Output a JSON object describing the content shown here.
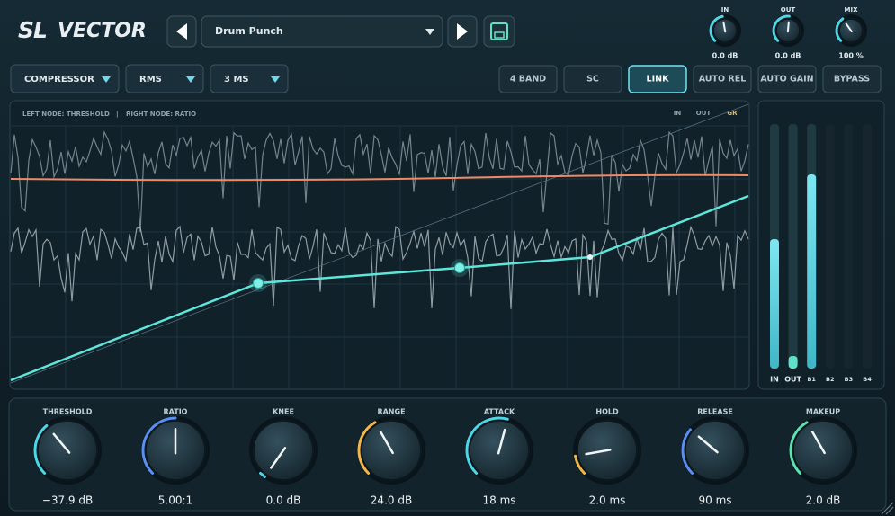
{
  "header": {
    "logo": {
      "prefix": "SL",
      "name": "VECTOR"
    },
    "preset": "Drum Punch",
    "knobs": [
      {
        "label": "IN",
        "value": "0.0 dB"
      },
      {
        "label": "OUT",
        "value": "0.0 dB"
      },
      {
        "label": "MIX",
        "value": "100 %"
      }
    ]
  },
  "toolbar": {
    "dropdowns": [
      "COMPRESSOR",
      "RMS",
      "3 MS"
    ],
    "buttons": [
      "4 BAND",
      "SC",
      "LINK",
      "AUTO REL",
      "AUTO GAIN",
      "BYPASS"
    ]
  },
  "graph": {
    "caption_left": "LEFT NODE: THRESHOLD",
    "separator": "|",
    "caption_right": "RIGHT NODE: RATIO",
    "legend": [
      "IN",
      "OUT",
      "GR"
    ]
  },
  "meters": {
    "labels": [
      "IN",
      "OUT",
      "B1",
      "B2",
      "B3",
      "B4"
    ]
  },
  "controls": [
    {
      "label": "THRESHOLD",
      "value": "−37.9 dB"
    },
    {
      "label": "RATIO",
      "value": "5.00:1"
    },
    {
      "label": "KNEE",
      "value": "0.0 dB"
    },
    {
      "label": "RANGE",
      "value": "24.0 dB"
    },
    {
      "label": "ATTACK",
      "value": "18 ms"
    },
    {
      "label": "HOLD",
      "value": "2.0 ms"
    },
    {
      "label": "RELEASE",
      "value": "90 ms"
    },
    {
      "label": "MAKEUP",
      "value": "2.0 dB"
    }
  ]
}
